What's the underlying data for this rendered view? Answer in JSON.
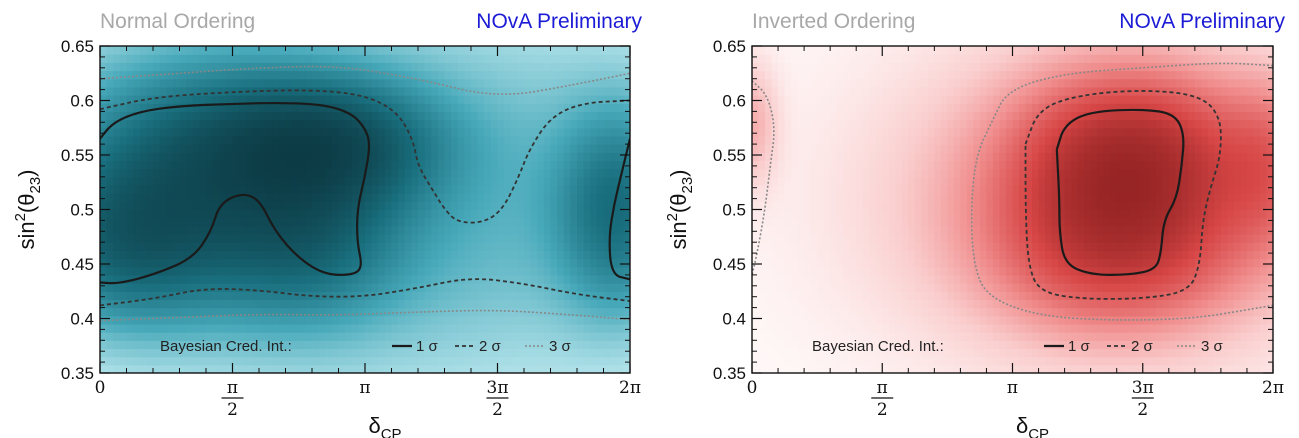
{
  "chart_data": [
    {
      "type": "heatmap",
      "title_left": "Normal Ordering",
      "title_right": "NOvA Preliminary",
      "colormap": "teal",
      "xlabel": "δ",
      "xlabel_sub": "CP",
      "ylabel_pre": "sin",
      "ylabel_sup": "2",
      "ylabel_mid": "(θ",
      "ylabel_sub": "23",
      "ylabel_post": ")",
      "xlim": [
        0,
        2
      ],
      "ylim": [
        0.35,
        0.65
      ],
      "xticks": [
        {
          "value": 0,
          "label": "0"
        },
        {
          "value": 0.5,
          "label": "π/2"
        },
        {
          "value": 1,
          "label": "π"
        },
        {
          "value": 1.5,
          "label": "3π/2"
        },
        {
          "value": 2,
          "label": "2π"
        }
      ],
      "yticks": [
        "0.35",
        "0.4",
        "0.45",
        "0.5",
        "0.55",
        "0.6",
        "0.65"
      ],
      "legend": {
        "title": "Bayesian Cred. Int.:",
        "entries": [
          "1 σ",
          "2 σ",
          "3 σ"
        ]
      },
      "series": [
        {
          "name": "1 σ",
          "contours": [
            [
              [
                0.0,
                0.565
              ],
              [
                0.05,
                0.58
              ],
              [
                0.15,
                0.59
              ],
              [
                0.3,
                0.595
              ],
              [
                0.5,
                0.597
              ],
              [
                0.7,
                0.598
              ],
              [
                0.85,
                0.596
              ],
              [
                0.95,
                0.588
              ],
              [
                1.0,
                0.575
              ],
              [
                1.02,
                0.56
              ],
              [
                1.0,
                0.53
              ],
              [
                0.97,
                0.5
              ],
              [
                0.97,
                0.47
              ],
              [
                0.99,
                0.448
              ],
              [
                0.96,
                0.44
              ],
              [
                0.85,
                0.44
              ],
              [
                0.75,
                0.455
              ],
              [
                0.66,
                0.48
              ],
              [
                0.6,
                0.51
              ],
              [
                0.53,
                0.515
              ],
              [
                0.45,
                0.505
              ],
              [
                0.42,
                0.48
              ],
              [
                0.35,
                0.455
              ],
              [
                0.2,
                0.44
              ],
              [
                0.07,
                0.432
              ],
              [
                0.0,
                0.433
              ]
            ],
            [
              [
                2.0,
                0.565
              ],
              [
                1.97,
                0.535
              ],
              [
                1.94,
                0.505
              ],
              [
                1.92,
                0.475
              ],
              [
                1.93,
                0.44
              ],
              [
                2.0,
                0.436
              ]
            ]
          ]
        },
        {
          "name": "2 σ",
          "contours": [
            [
              [
                0.0,
                0.592
              ],
              [
                0.2,
                0.603
              ],
              [
                0.5,
                0.608
              ],
              [
                0.8,
                0.61
              ],
              [
                1.0,
                0.605
              ],
              [
                1.12,
                0.59
              ],
              [
                1.18,
                0.565
              ],
              [
                1.2,
                0.54
              ],
              [
                1.25,
                0.52
              ],
              [
                1.3,
                0.5
              ],
              [
                1.35,
                0.488
              ],
              [
                1.45,
                0.488
              ],
              [
                1.52,
                0.5
              ],
              [
                1.58,
                0.53
              ],
              [
                1.62,
                0.555
              ],
              [
                1.7,
                0.585
              ],
              [
                1.82,
                0.598
              ],
              [
                2.0,
                0.6
              ]
            ],
            [
              [
                0.0,
                0.412
              ],
              [
                0.2,
                0.418
              ],
              [
                0.4,
                0.428
              ],
              [
                0.6,
                0.426
              ],
              [
                0.8,
                0.42
              ],
              [
                1.0,
                0.42
              ],
              [
                1.2,
                0.428
              ],
              [
                1.4,
                0.438
              ],
              [
                1.6,
                0.432
              ],
              [
                1.8,
                0.422
              ],
              [
                2.0,
                0.416
              ]
            ]
          ]
        },
        {
          "name": "3 σ",
          "contours": [
            [
              [
                0.0,
                0.62
              ],
              [
                0.3,
                0.625
              ],
              [
                0.6,
                0.63
              ],
              [
                0.9,
                0.632
              ],
              [
                1.2,
                0.62
              ],
              [
                1.5,
                0.602
              ],
              [
                1.8,
                0.615
              ],
              [
                2.0,
                0.625
              ]
            ],
            [
              [
                0.0,
                0.398
              ],
              [
                0.3,
                0.401
              ],
              [
                0.6,
                0.404
              ],
              [
                0.9,
                0.403
              ],
              [
                1.2,
                0.406
              ],
              [
                1.5,
                0.408
              ],
              [
                1.8,
                0.403
              ],
              [
                2.0,
                0.399
              ]
            ]
          ]
        }
      ],
      "blobs": [
        {
          "x": 0.85,
          "y": 0.56,
          "sx": 0.28,
          "sy": 0.04,
          "amp": 1.0
        },
        {
          "x": 0.4,
          "y": 0.55,
          "sx": 0.35,
          "sy": 0.06,
          "amp": 0.75
        },
        {
          "x": 0.12,
          "y": 0.47,
          "sx": 0.25,
          "sy": 0.05,
          "amp": 0.8
        },
        {
          "x": 0.75,
          "y": 0.47,
          "sx": 0.25,
          "sy": 0.05,
          "amp": 0.65
        },
        {
          "x": 1.95,
          "y": 0.5,
          "sx": 0.15,
          "sy": 0.06,
          "amp": 0.7
        },
        {
          "x": 1.0,
          "y": 0.51,
          "sx": 1.2,
          "sy": 0.13,
          "amp": 0.45
        }
      ]
    },
    {
      "type": "heatmap",
      "title_left": "Inverted Ordering",
      "title_right": "NOvA Preliminary",
      "colormap": "red",
      "xlabel": "δ",
      "xlabel_sub": "CP",
      "ylabel_pre": "sin",
      "ylabel_sup": "2",
      "ylabel_mid": "(θ",
      "ylabel_sub": "23",
      "ylabel_post": ")",
      "xlim": [
        0,
        2
      ],
      "ylim": [
        0.35,
        0.65
      ],
      "xticks": [
        {
          "value": 0,
          "label": "0"
        },
        {
          "value": 0.5,
          "label": "π/2"
        },
        {
          "value": 1,
          "label": "π"
        },
        {
          "value": 1.5,
          "label": "3π/2"
        },
        {
          "value": 2,
          "label": "2π"
        }
      ],
      "yticks": [
        "0.35",
        "0.4",
        "0.45",
        "0.5",
        "0.55",
        "0.6",
        "0.65"
      ],
      "legend": {
        "title": "Bayesian Cred. Int.:",
        "entries": [
          "1 σ",
          "2 σ",
          "3 σ"
        ]
      },
      "series": [
        {
          "name": "1 σ",
          "contours": [
            [
              [
                1.17,
                0.555
              ],
              [
                1.2,
                0.578
              ],
              [
                1.3,
                0.59
              ],
              [
                1.5,
                0.592
              ],
              [
                1.62,
                0.588
              ],
              [
                1.66,
                0.57
              ],
              [
                1.65,
                0.54
              ],
              [
                1.63,
                0.51
              ],
              [
                1.58,
                0.49
              ],
              [
                1.57,
                0.46
              ],
              [
                1.55,
                0.445
              ],
              [
                1.45,
                0.44
              ],
              [
                1.3,
                0.44
              ],
              [
                1.2,
                0.45
              ],
              [
                1.18,
                0.48
              ],
              [
                1.18,
                0.51
              ],
              [
                1.17,
                0.555
              ]
            ]
          ]
        },
        {
          "name": "2 σ",
          "contours": [
            [
              [
                1.05,
                0.56
              ],
              [
                1.1,
                0.592
              ],
              [
                1.25,
                0.605
              ],
              [
                1.5,
                0.61
              ],
              [
                1.72,
                0.605
              ],
              [
                1.8,
                0.585
              ],
              [
                1.8,
                0.55
              ],
              [
                1.76,
                0.52
              ],
              [
                1.73,
                0.49
              ],
              [
                1.72,
                0.45
              ],
              [
                1.68,
                0.425
              ],
              [
                1.5,
                0.418
              ],
              [
                1.25,
                0.418
              ],
              [
                1.1,
                0.425
              ],
              [
                1.06,
                0.45
              ],
              [
                1.05,
                0.5
              ],
              [
                1.05,
                0.56
              ]
            ]
          ]
        },
        {
          "name": "3 σ",
          "contours": [
            [
              [
                2.0,
                0.632
              ],
              [
                1.8,
                0.635
              ],
              [
                1.5,
                0.63
              ],
              [
                1.2,
                0.625
              ],
              [
                0.98,
                0.61
              ],
              [
                0.92,
                0.58
              ],
              [
                0.86,
                0.55
              ],
              [
                0.84,
                0.5
              ],
              [
                0.85,
                0.45
              ],
              [
                0.9,
                0.42
              ],
              [
                1.1,
                0.402
              ],
              [
                1.4,
                0.398
              ],
              [
                1.7,
                0.4
              ],
              [
                1.9,
                0.408
              ],
              [
                2.0,
                0.412
              ]
            ],
            [
              [
                0.0,
                0.618
              ],
              [
                0.06,
                0.605
              ],
              [
                0.09,
                0.575
              ],
              [
                0.07,
                0.54
              ],
              [
                0.05,
                0.5
              ],
              [
                0.02,
                0.46
              ],
              [
                0.0,
                0.44
              ]
            ]
          ]
        }
      ],
      "blobs": [
        {
          "x": 1.45,
          "y": 0.55,
          "sx": 0.28,
          "sy": 0.05,
          "amp": 1.0
        },
        {
          "x": 1.4,
          "y": 0.47,
          "sx": 0.3,
          "sy": 0.05,
          "amp": 0.75
        },
        {
          "x": 1.4,
          "y": 0.51,
          "sx": 0.6,
          "sy": 0.1,
          "amp": 0.5
        },
        {
          "x": 1.98,
          "y": 0.54,
          "sx": 0.12,
          "sy": 0.05,
          "amp": 0.4
        },
        {
          "x": 0.0,
          "y": 0.58,
          "sx": 0.07,
          "sy": 0.04,
          "amp": 0.3
        }
      ]
    }
  ]
}
